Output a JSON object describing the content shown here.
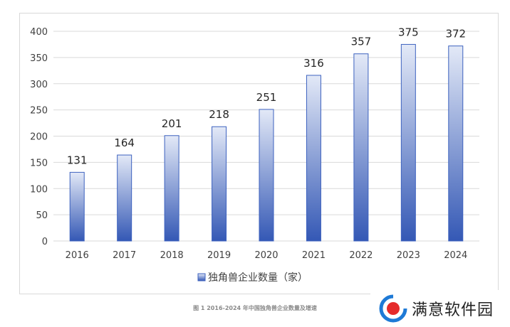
{
  "chart_data": {
    "type": "bar",
    "categories": [
      "2016",
      "2017",
      "2018",
      "2019",
      "2020",
      "2021",
      "2022",
      "2023",
      "2024"
    ],
    "series": [
      {
        "name": "独角兽企业数量（家）",
        "values": [
          131,
          164,
          201,
          218,
          251,
          316,
          357,
          375,
          372
        ]
      }
    ],
    "ylim": [
      0,
      400
    ],
    "yticks": [
      0,
      50,
      100,
      150,
      200,
      250,
      300,
      350,
      400
    ],
    "grid": true,
    "legend_position": "bottom",
    "colors": {
      "bar_top": "#e3e9f7",
      "bar_bottom": "#3458b5",
      "bar_stroke": "#3d62bf",
      "grid": "#d9d9d9"
    }
  },
  "caption": "图 1 2016-2024 年中国独角兽企业数量及增速",
  "watermark": {
    "text": "满意软件园",
    "logo_color": "#e52b2b",
    "logo_ring": "#1e7ad6"
  }
}
